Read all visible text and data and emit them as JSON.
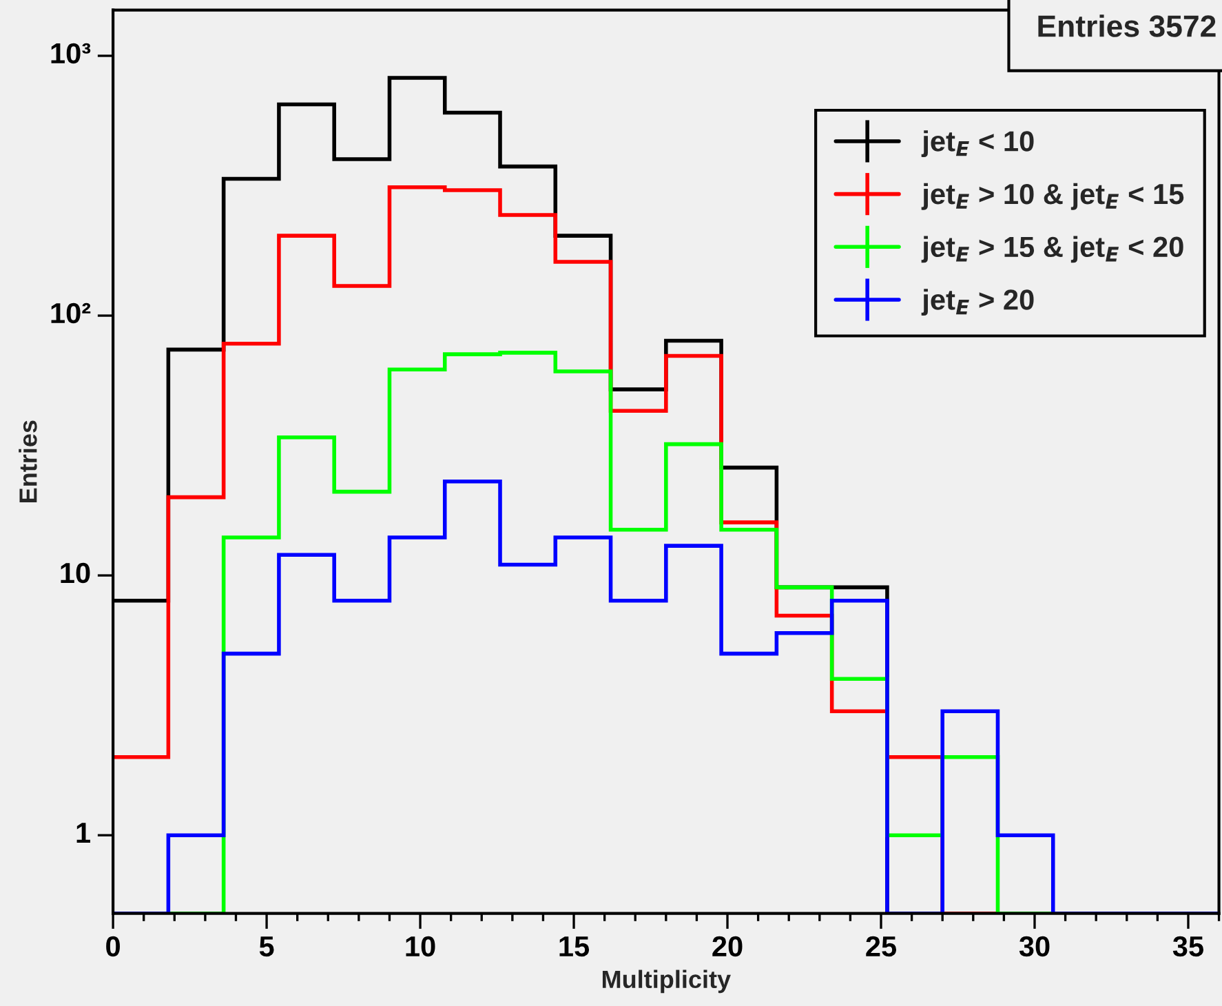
{
  "chart_data": {
    "type": "histogram",
    "xlabel": "Multiplicity",
    "ylabel": "Entries",
    "bins": [
      0,
      1.8,
      3.6,
      5.4,
      7.2,
      9,
      10.8,
      12.6,
      14.4,
      16.2,
      18,
      19.8,
      21.6,
      23.4,
      25.2,
      27,
      28.8,
      30.6,
      32.4,
      34.2,
      36
    ],
    "series": [
      {
        "name": "jet$_{E}$ < 10",
        "color": "#000000",
        "values": [
          8,
          74,
          336,
          650,
          400,
          822,
          604,
          375,
          203,
          52,
          80,
          26,
          9,
          9,
          null,
          null,
          null,
          null,
          null,
          null
        ]
      },
      {
        "name": "jet$_{E}$ > 10 & jet$_{E}$ < 15",
        "color": "#ff0000",
        "values": [
          2,
          20,
          78,
          203,
          130,
          312,
          304,
          244,
          161,
          43,
          70,
          16,
          7,
          3,
          2,
          null,
          null,
          null,
          null,
          null
        ]
      },
      {
        "name": "jet$_{E}$ > 15 & jet$_{E}$ < 20",
        "color": "#00ff00",
        "values": [
          null,
          null,
          14,
          34,
          21,
          62,
          71,
          72,
          61,
          15,
          32,
          15,
          9,
          4,
          1,
          2,
          null,
          null,
          null,
          null
        ]
      },
      {
        "name": "jet$_{E}$ > 20",
        "color": "#0000ff",
        "values": [
          null,
          1,
          5,
          12,
          8,
          14,
          23,
          11,
          14,
          8,
          13,
          5,
          6,
          8,
          null,
          3,
          1,
          null,
          null,
          null
        ]
      }
    ],
    "annotations": [
      "Entries 3572"
    ],
    "xlim": [
      0,
      36
    ],
    "xticks": [
      0,
      5,
      10,
      15,
      20,
      25,
      30,
      35
    ],
    "ylim": [
      0.5,
      1500
    ],
    "log": true,
    "yticks": [
      1,
      10,
      {
        "value": 100,
        "label": "10²"
      },
      {
        "value": 1000,
        "label": "10³"
      }
    ],
    "grid": false,
    "legend": "top right"
  }
}
